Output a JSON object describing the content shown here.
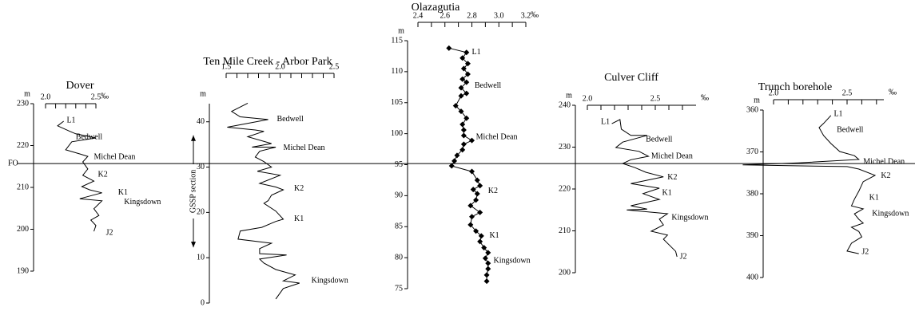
{
  "chart_data": [
    {
      "type": "line",
      "title": "Dover",
      "ylabel": "m",
      "x_unit": "‰",
      "color": "#000000",
      "xlim": [
        2.0,
        2.5
      ],
      "xticks": [
        {
          "value": 2.0,
          "label": "2.0"
        },
        2.5
      ],
      "xminorticks": [
        2.1,
        2.2,
        2.3,
        2.4
      ],
      "ylim": [
        190,
        230
      ],
      "yticks": [
        190,
        200,
        210,
        220,
        230
      ],
      "x": [
        2.18,
        2.12,
        2.25,
        2.3,
        2.5,
        2.26,
        2.2,
        2.34,
        2.42,
        2.37,
        2.42,
        2.37,
        2.48,
        2.36,
        2.44,
        2.56,
        2.34,
        2.56,
        2.48,
        2.53,
        2.45,
        2.5,
        2.48
      ],
      "y": [
        225.8,
        224.7,
        223.3,
        222.8,
        221.8,
        220.9,
        219.0,
        218.0,
        217.4,
        216.1,
        214.4,
        212.9,
        211.5,
        210.2,
        209.4,
        208.7,
        207.3,
        206.8,
        204.9,
        203.3,
        202.2,
        200.9,
        199.5
      ],
      "annotations": [
        {
          "text": "L1",
          "x": 2.21,
          "y": 226.0
        },
        {
          "text": "Bedwell",
          "x": 2.3,
          "y": 222.0
        },
        {
          "text": "Michel Dean",
          "x": 2.48,
          "y": 217.2
        },
        {
          "text": "K2",
          "x": 2.52,
          "y": 213.0
        },
        {
          "text": "K1",
          "x": 2.72,
          "y": 208.7
        },
        {
          "text": "Kingsdown",
          "x": 2.78,
          "y": 206.4
        },
        {
          "text": "J2",
          "x": 2.6,
          "y": 199.1
        }
      ],
      "reference_line": {
        "label": "FO",
        "y": 215.7
      }
    },
    {
      "type": "line",
      "title": "Ten Mile Creek - Arbor Park",
      "ylabel": "m",
      "color": "#000000",
      "xlim": [
        1.5,
        2.5
      ],
      "xticks": [
        1.5,
        {
          "value": 2.0,
          "label": "2.0"
        },
        2.5
      ],
      "xminorticks": [
        1.6,
        1.7,
        1.8,
        1.9,
        2.1,
        2.2,
        2.3,
        2.4
      ],
      "ylim": [
        0,
        44
      ],
      "yticks": [
        0,
        10,
        20,
        30,
        40
      ],
      "x": [
        1.7,
        1.55,
        1.63,
        1.89,
        1.51,
        1.77,
        1.85,
        1.7,
        1.92,
        1.74,
        1.96,
        1.81,
        1.77,
        1.85,
        1.92,
        1.79,
        2.0,
        1.81,
        1.96,
        2.03,
        1.92,
        1.89,
        1.85,
        1.96,
        2.03,
        1.96,
        1.83,
        1.63,
        1.61,
        1.92,
        1.81,
        1.81,
        2.06,
        1.81,
        1.85,
        1.96,
        2.14,
        2.03,
        2.18,
        2.03,
        1.96
      ],
      "y": [
        44.1,
        42.3,
        41.1,
        40.5,
        38.8,
        38.2,
        37.9,
        36.7,
        35.2,
        34.4,
        34.4,
        33.5,
        32.2,
        31.2,
        30.0,
        29.1,
        28.2,
        26.4,
        25.6,
        25.0,
        23.8,
        22.6,
        22.0,
        20.3,
        18.5,
        18.0,
        16.7,
        15.9,
        14.1,
        13.2,
        12.0,
        10.9,
        10.6,
        9.7,
        8.8,
        7.4,
        6.2,
        4.9,
        4.4,
        3.2,
        0.9
      ],
      "annotations": [
        {
          "text": "Bedwell",
          "x": 1.97,
          "y": 40.5
        },
        {
          "text": "Michel Dean",
          "x": 2.03,
          "y": 34.2
        },
        {
          "text": "K2",
          "x": 2.13,
          "y": 25.2
        },
        {
          "text": "K1",
          "x": 2.13,
          "y": 18.5
        },
        {
          "text": "Kingsdown",
          "x": 2.29,
          "y": 4.9
        }
      ],
      "bracket": {
        "label": "GSSP section",
        "from": 12.3,
        "to": 37.0
      }
    },
    {
      "type": "line",
      "title": "Olazagutia",
      "ylabel": "m",
      "x_unit": "‰",
      "color": "#000000",
      "marker": "diamond",
      "xlim": [
        2.4,
        3.2
      ],
      "xticks": [
        2.4,
        2.6,
        2.8,
        {
          "value": 3.0,
          "label": "3.0"
        },
        3.2
      ],
      "xminorticks": [
        2.5,
        2.7,
        2.9,
        3.1
      ],
      "ylim": [
        75,
        115
      ],
      "yticks": [
        75,
        80,
        85,
        90,
        95,
        100,
        105,
        110,
        115
      ],
      "x": [
        2.63,
        2.76,
        2.73,
        2.77,
        2.74,
        2.77,
        2.73,
        2.76,
        2.72,
        2.76,
        2.72,
        2.68,
        2.72,
        2.76,
        2.73,
        2.74,
        2.74,
        2.8,
        2.74,
        2.73,
        2.69,
        2.67,
        2.65,
        2.8,
        2.84,
        2.86,
        2.81,
        2.84,
        2.83,
        2.79,
        2.86,
        2.8,
        2.79,
        2.83,
        2.87,
        2.86,
        2.89,
        2.92,
        2.9,
        2.92,
        2.92,
        2.91,
        2.91
      ],
      "y": [
        113.8,
        113.1,
        112.2,
        111.3,
        110.5,
        109.6,
        108.8,
        108.3,
        107.4,
        106.5,
        106.1,
        104.5,
        103.6,
        102.5,
        101.5,
        100.6,
        99.7,
        98.9,
        98.3,
        97.4,
        96.5,
        95.6,
        94.8,
        93.9,
        92.5,
        91.6,
        91.0,
        90.3,
        89.3,
        88.4,
        87.3,
        86.6,
        85.3,
        84.3,
        83.5,
        82.6,
        81.6,
        80.8,
        79.9,
        79.1,
        78.2,
        77.2,
        76.2
      ],
      "annotations": [
        {
          "text": "L1",
          "x": 2.8,
          "y": 113.1
        },
        {
          "text": "Bedwell",
          "x": 2.82,
          "y": 107.7
        },
        {
          "text": "Michel Dean",
          "x": 2.83,
          "y": 99.4
        },
        {
          "text": "K2",
          "x": 2.92,
          "y": 90.7
        },
        {
          "text": "K1",
          "x": 2.93,
          "y": 83.5
        },
        {
          "text": "Kingsdown",
          "x": 2.96,
          "y": 79.5
        }
      ]
    },
    {
      "type": "line",
      "title": "Culver Cliff",
      "ylabel": "m",
      "x_unit": "‰",
      "color": "#000000",
      "xlim": [
        2.0,
        2.8
      ],
      "xticks": [
        {
          "value": 2.0,
          "label": "2.0"
        },
        2.5
      ],
      "xminorticks": [
        2.1,
        2.2,
        2.3,
        2.4,
        2.6,
        2.7
      ],
      "ylim": [
        200,
        240
      ],
      "yticks": [
        200,
        210,
        220,
        230,
        240
      ],
      "x": [
        2.18,
        2.24,
        2.25,
        2.32,
        2.44,
        2.26,
        2.21,
        2.38,
        2.45,
        2.32,
        2.26,
        2.35,
        2.43,
        2.56,
        2.32,
        2.53,
        2.41,
        2.53,
        2.32,
        2.44,
        2.29,
        2.59,
        2.53,
        2.56,
        2.47,
        2.59,
        2.56,
        2.65,
        2.66
      ],
      "y": [
        235.6,
        236.6,
        234.3,
        232.8,
        232.8,
        231.2,
        229.9,
        229.0,
        227.8,
        227.0,
        226.1,
        225.1,
        224.0,
        222.9,
        221.3,
        220.2,
        218.9,
        217.5,
        216.0,
        215.2,
        215.0,
        214.1,
        212.8,
        211.4,
        209.9,
        209.0,
        208.0,
        205.1,
        203.8
      ],
      "annotations": [
        {
          "text": "L1",
          "x": 2.1,
          "y": 236.0
        },
        {
          "text": "Bedwell",
          "x": 2.43,
          "y": 231.8
        },
        {
          "text": "Michel Dean",
          "x": 2.47,
          "y": 227.8
        },
        {
          "text": "K2",
          "x": 2.59,
          "y": 222.7
        },
        {
          "text": "K1",
          "x": 2.55,
          "y": 219.0
        },
        {
          "text": "Kingsdown",
          "x": 2.62,
          "y": 213.1
        },
        {
          "text": "J2",
          "x": 2.68,
          "y": 203.8
        }
      ]
    },
    {
      "type": "line",
      "title": "Trunch borehole",
      "ylabel": "m",
      "x_unit": "‰",
      "color": "#000000",
      "xlim": [
        2.0,
        2.75
      ],
      "xticks": [
        {
          "value": 2.0,
          "label": "2.0"
        },
        2.5
      ],
      "xminorticks": [
        2.1,
        2.2,
        2.3,
        2.4,
        2.6,
        2.7
      ],
      "ylim": [
        400,
        360
      ],
      "yticks": [
        360,
        370,
        380,
        390,
        400
      ],
      "x": [
        2.39,
        2.34,
        2.31,
        2.34,
        2.39,
        2.45,
        2.55,
        2.58,
        2.17,
        1.79,
        2.5,
        2.58,
        2.69,
        2.61,
        2.58,
        2.55,
        2.53,
        2.61,
        2.55,
        2.58,
        2.61,
        2.53,
        2.58,
        2.6,
        2.53,
        2.5,
        2.58
      ],
      "y": [
        361.3,
        363.2,
        364.2,
        366.1,
        368.0,
        369.9,
        370.9,
        371.8,
        372.6,
        373.1,
        373.5,
        374.1,
        375.6,
        377.1,
        379.4,
        381.3,
        382.9,
        383.6,
        384.8,
        386.1,
        387.0,
        388.0,
        389.0,
        390.3,
        391.8,
        393.7,
        394.3
      ],
      "annotations": [
        {
          "text": "L1",
          "x": 2.41,
          "y": 361.0
        },
        {
          "text": "Bedwell",
          "x": 2.43,
          "y": 364.8
        },
        {
          "text": "Michel Dean",
          "x": 2.61,
          "y": 372.4
        },
        {
          "text": "K2",
          "x": 2.73,
          "y": 375.8
        },
        {
          "text": "K1",
          "x": 2.65,
          "y": 381.0
        },
        {
          "text": "Kingsdown",
          "x": 2.67,
          "y": 384.8
        },
        {
          "text": "J2",
          "x": 2.6,
          "y": 393.9
        }
      ]
    }
  ]
}
